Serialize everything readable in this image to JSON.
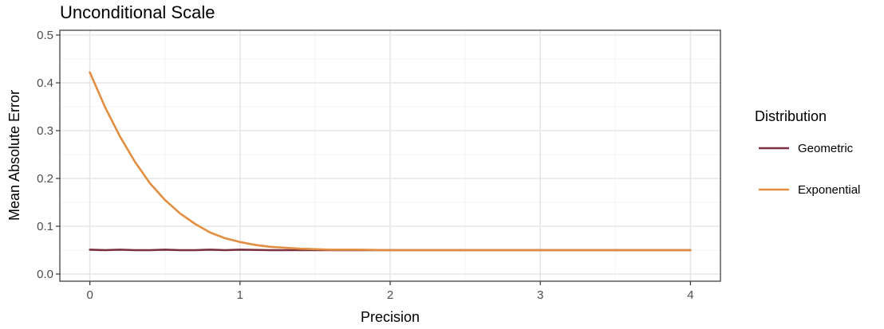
{
  "chart_data": {
    "type": "line",
    "title": "Unconditional Scale",
    "xlabel": "Precision",
    "ylabel": "Mean Absolute Error",
    "xlim": [
      -0.2,
      4.2
    ],
    "ylim": [
      -0.015,
      0.51
    ],
    "x_ticks": [
      0,
      1,
      2,
      3,
      4
    ],
    "x_tick_labels": [
      "0",
      "1",
      "2",
      "3",
      "4"
    ],
    "y_ticks": [
      0.0,
      0.1,
      0.2,
      0.3,
      0.4,
      0.5
    ],
    "y_tick_labels": [
      "0.0",
      "0.1",
      "0.2",
      "0.3",
      "0.4",
      "0.5"
    ],
    "grid": true,
    "legend": {
      "title": "Distribution",
      "position": "right"
    },
    "series": [
      {
        "name": "Geometric",
        "color": "#7b3042",
        "x": [
          0,
          0.1,
          0.2,
          0.3,
          0.4,
          0.5,
          0.6,
          0.7,
          0.8,
          0.9,
          1.0,
          1.2,
          1.4,
          1.6,
          1.8,
          2.0,
          2.5,
          3.0,
          3.5,
          4.0
        ],
        "y": [
          0.051,
          0.05,
          0.051,
          0.05,
          0.05,
          0.051,
          0.05,
          0.05,
          0.051,
          0.05,
          0.051,
          0.05,
          0.05,
          0.05,
          0.05,
          0.05,
          0.05,
          0.05,
          0.05,
          0.05
        ]
      },
      {
        "name": "Exponential",
        "color": "#e28e40",
        "x": [
          0,
          0.1,
          0.2,
          0.3,
          0.4,
          0.5,
          0.6,
          0.7,
          0.8,
          0.9,
          1.0,
          1.1,
          1.2,
          1.3,
          1.4,
          1.5,
          1.6,
          1.8,
          2.0,
          2.5,
          3.0,
          3.5,
          4.0
        ],
        "y": [
          0.422,
          0.35,
          0.288,
          0.235,
          0.19,
          0.155,
          0.127,
          0.105,
          0.087,
          0.075,
          0.067,
          0.061,
          0.057,
          0.055,
          0.053,
          0.052,
          0.051,
          0.051,
          0.05,
          0.05,
          0.05,
          0.05,
          0.05
        ]
      }
    ]
  }
}
